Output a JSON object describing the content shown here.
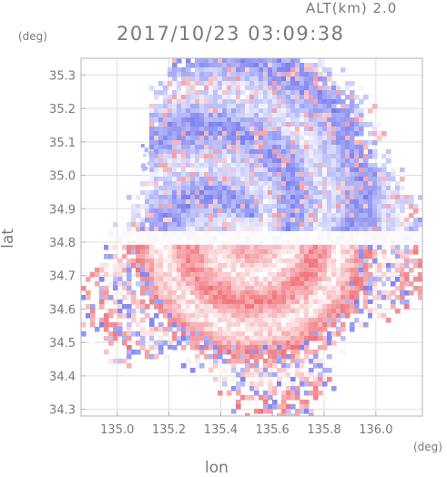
{
  "header": {
    "alt_label": "ALT(km) 2.0",
    "timestamp": "2017/10/23 03:09:38"
  },
  "colors": {
    "negative": "#6f74ee",
    "positive": "#f06f78",
    "neutral": "#ffffff",
    "axis": "#b4b4b4",
    "grid": "#dedede",
    "text": "#7a7a7a"
  },
  "chart_data": {
    "type": "heatmap",
    "title": "2017/10/23 03:09:38",
    "subtitle": "ALT(km) 2.0",
    "xlabel": "lon",
    "ylabel": "lat",
    "xunit": "(deg)",
    "yunit": "(deg)",
    "xlim": [
      134.86,
      136.18
    ],
    "ylim": [
      34.28,
      35.35
    ],
    "xticks": [
      135.0,
      135.2,
      135.4,
      135.6,
      135.8,
      136.0
    ],
    "xtick_labels": [
      "135.0",
      "135.2",
      "135.4",
      "135.6",
      "135.8",
      "136.0"
    ],
    "yticks": [
      34.3,
      34.4,
      34.5,
      34.6,
      34.7,
      34.8,
      34.9,
      35.0,
      35.1,
      35.2,
      35.3
    ],
    "ytick_labels": [
      "34.3",
      "34.4",
      "34.5",
      "34.6",
      "34.7",
      "34.8",
      "34.9",
      "35.0",
      "35.1",
      "35.2",
      "35.3"
    ],
    "grid": true,
    "radar_center": [
      135.52,
      34.81
    ],
    "colormap": "blue-white-red (blue negative, red positive)"
  }
}
